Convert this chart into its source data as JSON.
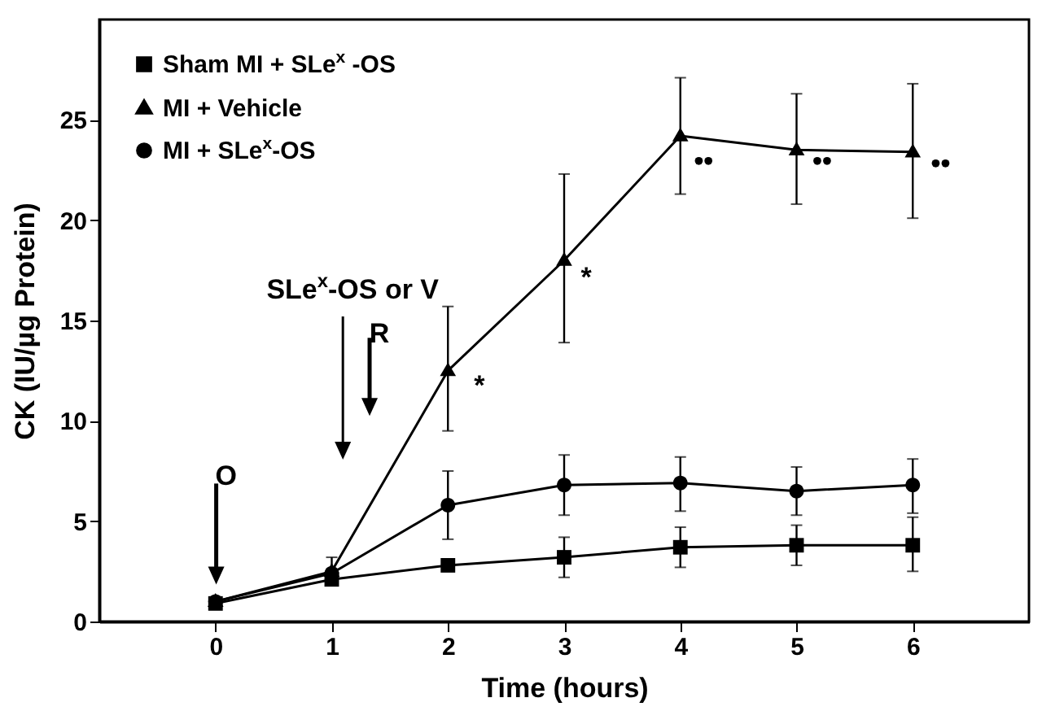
{
  "chart_data": {
    "type": "line",
    "xlabel": "Time (hours)",
    "ylabel": "CK (IU/µg Protein)",
    "x": [
      0,
      1,
      2,
      3,
      4,
      5,
      6
    ],
    "xlim": [
      -1,
      7
    ],
    "xticks": [
      0,
      1,
      2,
      3,
      4,
      5,
      6
    ],
    "ylim": [
      0,
      30
    ],
    "yticks": [
      0,
      5,
      10,
      15,
      20,
      25
    ],
    "series": [
      {
        "name": "Sham MI + SLe$^{x}$ -OS",
        "color": "#000000",
        "marker": "square",
        "values": [
          0.9,
          2.1,
          2.8,
          3.2,
          3.7,
          3.8,
          3.8
        ],
        "errors": [
          null,
          null,
          null,
          [
            2.2,
            4.2
          ],
          [
            2.7,
            4.7
          ],
          [
            2.8,
            4.8
          ],
          [
            2.5,
            5.2
          ]
        ]
      },
      {
        "name": "MI + Vehicle",
        "color": "#000000",
        "marker": "triangle",
        "values": [
          1.0,
          2.5,
          12.5,
          18,
          24.2,
          23.5,
          23.4
        ],
        "errors": [
          null,
          [
            1.8,
            3.2
          ],
          [
            9.5,
            15.7
          ],
          [
            13.9,
            22.3
          ],
          [
            21.3,
            27.1
          ],
          [
            20.8,
            26.3
          ],
          [
            20.1,
            26.8
          ]
        ]
      },
      {
        "name": "MI + SLe$^{x}$-OS",
        "color": "#000000",
        "marker": "circle",
        "values": [
          1.0,
          2.4,
          5.8,
          6.8,
          6.9,
          6.5,
          6.8
        ],
        "errors": [
          null,
          null,
          [
            4.1,
            7.5
          ],
          [
            5.3,
            8.3
          ],
          [
            5.5,
            8.2
          ],
          [
            5.3,
            7.7
          ],
          [
            5.4,
            8.1
          ]
        ]
      }
    ],
    "annotations": [
      "O",
      "SLe$^{x}$-OS or V",
      "R",
      "*",
      "*",
      "••",
      "••",
      "••"
    ],
    "grid": false,
    "legend": "top left"
  }
}
